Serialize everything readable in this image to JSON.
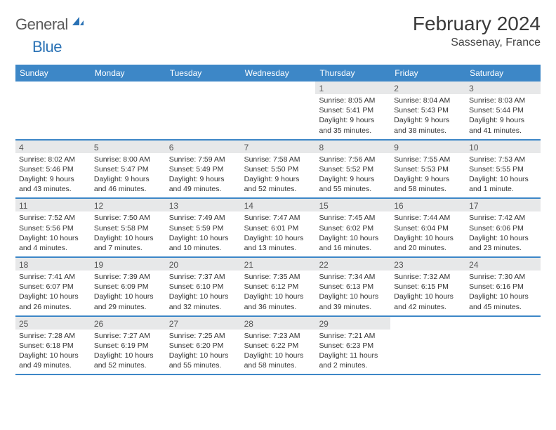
{
  "logo": {
    "word1": "General",
    "word2": "Blue"
  },
  "title": "February 2024",
  "location": "Sassenay, France",
  "colors": {
    "header_bg": "#3d87c7",
    "header_text": "#ffffff",
    "daynum_bg": "#e7e8e9",
    "row_border": "#3d87c7",
    "body_text": "#333333",
    "logo_gray": "#5a5a5a",
    "logo_blue": "#2a72b5"
  },
  "weekdays": [
    "Sunday",
    "Monday",
    "Tuesday",
    "Wednesday",
    "Thursday",
    "Friday",
    "Saturday"
  ],
  "weeks": [
    [
      {
        "empty": true
      },
      {
        "empty": true
      },
      {
        "empty": true
      },
      {
        "empty": true
      },
      {
        "day": "1",
        "sunrise": "Sunrise: 8:05 AM",
        "sunset": "Sunset: 5:41 PM",
        "daylight1": "Daylight: 9 hours",
        "daylight2": "and 35 minutes."
      },
      {
        "day": "2",
        "sunrise": "Sunrise: 8:04 AM",
        "sunset": "Sunset: 5:43 PM",
        "daylight1": "Daylight: 9 hours",
        "daylight2": "and 38 minutes."
      },
      {
        "day": "3",
        "sunrise": "Sunrise: 8:03 AM",
        "sunset": "Sunset: 5:44 PM",
        "daylight1": "Daylight: 9 hours",
        "daylight2": "and 41 minutes."
      }
    ],
    [
      {
        "day": "4",
        "sunrise": "Sunrise: 8:02 AM",
        "sunset": "Sunset: 5:46 PM",
        "daylight1": "Daylight: 9 hours",
        "daylight2": "and 43 minutes."
      },
      {
        "day": "5",
        "sunrise": "Sunrise: 8:00 AM",
        "sunset": "Sunset: 5:47 PM",
        "daylight1": "Daylight: 9 hours",
        "daylight2": "and 46 minutes."
      },
      {
        "day": "6",
        "sunrise": "Sunrise: 7:59 AM",
        "sunset": "Sunset: 5:49 PM",
        "daylight1": "Daylight: 9 hours",
        "daylight2": "and 49 minutes."
      },
      {
        "day": "7",
        "sunrise": "Sunrise: 7:58 AM",
        "sunset": "Sunset: 5:50 PM",
        "daylight1": "Daylight: 9 hours",
        "daylight2": "and 52 minutes."
      },
      {
        "day": "8",
        "sunrise": "Sunrise: 7:56 AM",
        "sunset": "Sunset: 5:52 PM",
        "daylight1": "Daylight: 9 hours",
        "daylight2": "and 55 minutes."
      },
      {
        "day": "9",
        "sunrise": "Sunrise: 7:55 AM",
        "sunset": "Sunset: 5:53 PM",
        "daylight1": "Daylight: 9 hours",
        "daylight2": "and 58 minutes."
      },
      {
        "day": "10",
        "sunrise": "Sunrise: 7:53 AM",
        "sunset": "Sunset: 5:55 PM",
        "daylight1": "Daylight: 10 hours",
        "daylight2": "and 1 minute."
      }
    ],
    [
      {
        "day": "11",
        "sunrise": "Sunrise: 7:52 AM",
        "sunset": "Sunset: 5:56 PM",
        "daylight1": "Daylight: 10 hours",
        "daylight2": "and 4 minutes."
      },
      {
        "day": "12",
        "sunrise": "Sunrise: 7:50 AM",
        "sunset": "Sunset: 5:58 PM",
        "daylight1": "Daylight: 10 hours",
        "daylight2": "and 7 minutes."
      },
      {
        "day": "13",
        "sunrise": "Sunrise: 7:49 AM",
        "sunset": "Sunset: 5:59 PM",
        "daylight1": "Daylight: 10 hours",
        "daylight2": "and 10 minutes."
      },
      {
        "day": "14",
        "sunrise": "Sunrise: 7:47 AM",
        "sunset": "Sunset: 6:01 PM",
        "daylight1": "Daylight: 10 hours",
        "daylight2": "and 13 minutes."
      },
      {
        "day": "15",
        "sunrise": "Sunrise: 7:45 AM",
        "sunset": "Sunset: 6:02 PM",
        "daylight1": "Daylight: 10 hours",
        "daylight2": "and 16 minutes."
      },
      {
        "day": "16",
        "sunrise": "Sunrise: 7:44 AM",
        "sunset": "Sunset: 6:04 PM",
        "daylight1": "Daylight: 10 hours",
        "daylight2": "and 20 minutes."
      },
      {
        "day": "17",
        "sunrise": "Sunrise: 7:42 AM",
        "sunset": "Sunset: 6:06 PM",
        "daylight1": "Daylight: 10 hours",
        "daylight2": "and 23 minutes."
      }
    ],
    [
      {
        "day": "18",
        "sunrise": "Sunrise: 7:41 AM",
        "sunset": "Sunset: 6:07 PM",
        "daylight1": "Daylight: 10 hours",
        "daylight2": "and 26 minutes."
      },
      {
        "day": "19",
        "sunrise": "Sunrise: 7:39 AM",
        "sunset": "Sunset: 6:09 PM",
        "daylight1": "Daylight: 10 hours",
        "daylight2": "and 29 minutes."
      },
      {
        "day": "20",
        "sunrise": "Sunrise: 7:37 AM",
        "sunset": "Sunset: 6:10 PM",
        "daylight1": "Daylight: 10 hours",
        "daylight2": "and 32 minutes."
      },
      {
        "day": "21",
        "sunrise": "Sunrise: 7:35 AM",
        "sunset": "Sunset: 6:12 PM",
        "daylight1": "Daylight: 10 hours",
        "daylight2": "and 36 minutes."
      },
      {
        "day": "22",
        "sunrise": "Sunrise: 7:34 AM",
        "sunset": "Sunset: 6:13 PM",
        "daylight1": "Daylight: 10 hours",
        "daylight2": "and 39 minutes."
      },
      {
        "day": "23",
        "sunrise": "Sunrise: 7:32 AM",
        "sunset": "Sunset: 6:15 PM",
        "daylight1": "Daylight: 10 hours",
        "daylight2": "and 42 minutes."
      },
      {
        "day": "24",
        "sunrise": "Sunrise: 7:30 AM",
        "sunset": "Sunset: 6:16 PM",
        "daylight1": "Daylight: 10 hours",
        "daylight2": "and 45 minutes."
      }
    ],
    [
      {
        "day": "25",
        "sunrise": "Sunrise: 7:28 AM",
        "sunset": "Sunset: 6:18 PM",
        "daylight1": "Daylight: 10 hours",
        "daylight2": "and 49 minutes."
      },
      {
        "day": "26",
        "sunrise": "Sunrise: 7:27 AM",
        "sunset": "Sunset: 6:19 PM",
        "daylight1": "Daylight: 10 hours",
        "daylight2": "and 52 minutes."
      },
      {
        "day": "27",
        "sunrise": "Sunrise: 7:25 AM",
        "sunset": "Sunset: 6:20 PM",
        "daylight1": "Daylight: 10 hours",
        "daylight2": "and 55 minutes."
      },
      {
        "day": "28",
        "sunrise": "Sunrise: 7:23 AM",
        "sunset": "Sunset: 6:22 PM",
        "daylight1": "Daylight: 10 hours",
        "daylight2": "and 58 minutes."
      },
      {
        "day": "29",
        "sunrise": "Sunrise: 7:21 AM",
        "sunset": "Sunset: 6:23 PM",
        "daylight1": "Daylight: 11 hours",
        "daylight2": "and 2 minutes."
      },
      {
        "empty": true
      },
      {
        "empty": true
      }
    ]
  ]
}
